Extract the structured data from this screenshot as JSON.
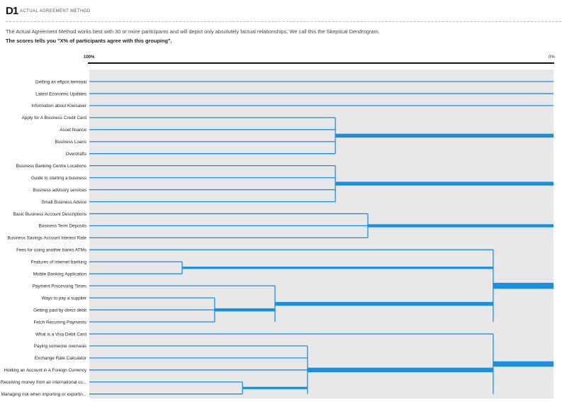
{
  "header": {
    "badge": "D1",
    "title": "ACTUAL AGREEMENT METHOD",
    "description": "The Actual Agreement Method works best with 30 or more participants and will depict only absolutely factual relationships. We call this the Skeptical Dendrogram.",
    "scores_note": "The scores tells you \"X% of participants agree with this grouping\"."
  },
  "chart_data": {
    "type": "dendrogram",
    "title": "Actual Agreement Method",
    "axis": {
      "left_label": "100%",
      "right_label": "0%",
      "min": 0,
      "max": 100,
      "direction": "100 at left, 0 at right"
    },
    "colors": {
      "line": "#1a8fe0",
      "panel": "#e8e8e8"
    },
    "leaves": [
      "Getting an eftpos terminal",
      "Latest Economic Updates",
      "Information about Kiwisaver",
      "Apply for A Business Credit Card",
      "Asset finance",
      "Business Loans",
      "Overdrafts",
      "Business Banking Centre Locations",
      "Guide to starting a business",
      "Business advisory services",
      "Small Business Advice",
      "Basic Business Account Descriptions",
      "Business Term Deposits",
      "Business Savings Account Interest Rate",
      "Fees for using another banks ATMs",
      "Features of internet banking",
      "Mobile Banking Application",
      "Payment Processing Times",
      "Ways to pay a supplier",
      "Getting paid by direct debit",
      "Fetch Recurring Payments",
      "What is a Visa Debit Card",
      "Paying someone overseas",
      "Exchange Rate Calculator",
      "Holding an Account in A Foreign Currency",
      "Receiving money from an international co...",
      "Managing risk when importing or exportin..."
    ],
    "clusters": [
      {
        "members": [
          3,
          4,
          5,
          6
        ],
        "agreement": 47,
        "parent_agreement": 0
      },
      {
        "members": [
          7,
          8,
          9,
          10
        ],
        "agreement": 47,
        "parent_agreement": 0
      },
      {
        "members": [
          11,
          12,
          13
        ],
        "agreement": 40,
        "parent_agreement": 0
      },
      {
        "members": [
          15,
          16
        ],
        "agreement": 80,
        "parent_agreement": 13
      },
      {
        "members": [
          18,
          19,
          20
        ],
        "agreement": 73,
        "parent_agreement": 60
      },
      {
        "members": [
          17,
          18,
          19,
          20
        ],
        "agreement": 60,
        "parent_agreement": 13
      },
      {
        "members": [
          14,
          15,
          16,
          17,
          18,
          19,
          20
        ],
        "agreement": 13,
        "parent_agreement": 0
      },
      {
        "members": [
          25,
          26
        ],
        "agreement": 67,
        "parent_agreement": 53
      },
      {
        "members": [
          22,
          23,
          24,
          25,
          26
        ],
        "agreement": 53,
        "parent_agreement": 13
      },
      {
        "members": [
          21,
          22,
          23,
          24,
          25,
          26
        ],
        "agreement": 13,
        "parent_agreement": 0
      }
    ]
  }
}
